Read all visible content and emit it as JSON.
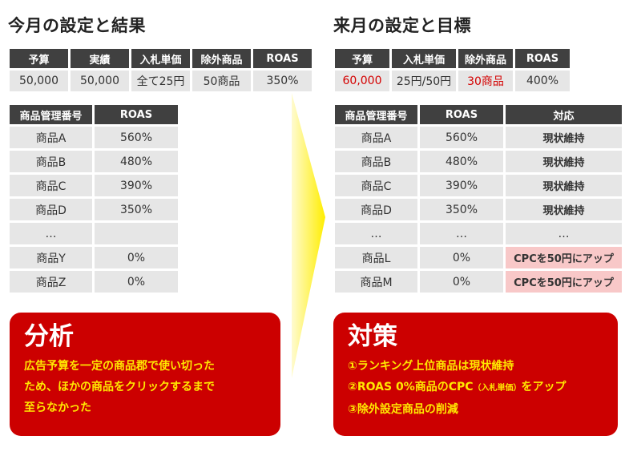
{
  "left": {
    "title": "今月の設定と結果",
    "settings": {
      "headers": [
        "予算",
        "実績",
        "入札単価",
        "除外商品",
        "ROAS"
      ],
      "values": [
        "50,000",
        "50,000",
        "全て25円",
        "50商品",
        "350%"
      ]
    },
    "products": {
      "headers": [
        "商品管理番号",
        "ROAS"
      ],
      "rows": [
        [
          "商品A",
          "560%"
        ],
        [
          "商品B",
          "480%"
        ],
        [
          "商品C",
          "390%"
        ],
        [
          "商品D",
          "350%"
        ],
        [
          "…",
          ""
        ],
        [
          "商品Y",
          "0%"
        ],
        [
          "商品Z",
          "0%"
        ]
      ]
    },
    "analysis": {
      "heading": "分析",
      "lines": [
        "広告予算を一定の商品郡で使い切った",
        "ため、ほかの商品をクリックするまで",
        "至らなかった"
      ]
    }
  },
  "right": {
    "title": "来月の設定と目標",
    "settings": {
      "headers": [
        "予算",
        "入札単価",
        "除外商品",
        "ROAS"
      ],
      "values": [
        "60,000",
        "25円/50円",
        "30商品",
        "400%"
      ],
      "highlight_color": "#d40000"
    },
    "products": {
      "headers": [
        "商品管理番号",
        "ROAS",
        "対応"
      ],
      "rows": [
        [
          "商品A",
          "560%",
          "現状維持"
        ],
        [
          "商品B",
          "480%",
          "現状維持"
        ],
        [
          "商品C",
          "390%",
          "現状維持"
        ],
        [
          "商品D",
          "350%",
          "現状維持"
        ],
        [
          "…",
          "…",
          "…"
        ],
        [
          "商品L",
          "0%",
          "CPCを50円にアップ"
        ],
        [
          "商品M",
          "0%",
          "CPCを50円にアップ"
        ]
      ]
    },
    "measures": {
      "heading": "対策",
      "line1": "①ランキング上位商品は現状維持",
      "line2_pre": "②ROAS 0%商品のCPC",
      "line2_small": "（入札単価）",
      "line2_post": "をアップ",
      "line3": "③除外設定商品の削減"
    }
  },
  "colors": {
    "header_bg": "#404040",
    "cell_bg": "#e6e6e6",
    "box_bg": "#cc0000",
    "box_text": "#ffe800",
    "pink_cell": "#f8c8c8",
    "arrow": "#ffee00"
  },
  "icons": {
    "arrow": "triangle-arrow-right"
  }
}
